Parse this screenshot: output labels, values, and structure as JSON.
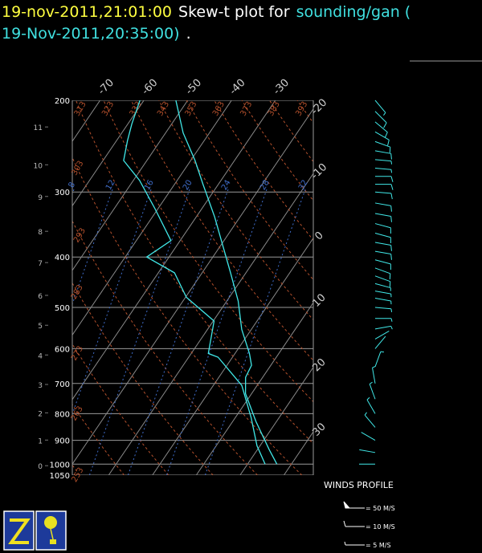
{
  "chart_data": {
    "type": "skewt",
    "title_lines": [
      [
        {
          "text": "19-nov-2011,21:01:00",
          "color": "#ffff40"
        },
        {
          "text": "Skew-t plot for",
          "color": "#ffffff"
        },
        {
          "text": "sounding/gan (",
          "color": "#40e0e0"
        }
      ],
      [
        {
          "text": "19-Nov-2011,20:35:00)",
          "color": "#40e0e0"
        },
        {
          "text": ".",
          "color": "#ffffff"
        }
      ]
    ],
    "ylim": [
      1050,
      200
    ],
    "xlim": [
      -20,
      35
    ],
    "pressure_ticks": [
      200,
      300,
      400,
      500,
      600,
      700,
      800,
      900,
      1000,
      1050
    ],
    "height_ticks": [
      11,
      10,
      9,
      8,
      7,
      6,
      5,
      4,
      3,
      2,
      1,
      0
    ],
    "height_pressures": [
      225,
      266,
      306,
      357,
      410,
      474,
      541,
      617,
      703,
      797,
      899,
      1007
    ],
    "temp_ticks": [
      -70,
      -60,
      -50,
      -40,
      -30,
      -20,
      -10,
      0,
      10,
      20,
      30
    ],
    "isotherm_color": "#8a8a8a",
    "dry_adiabats": [
      253,
      263,
      273,
      283,
      293,
      303,
      313,
      323,
      333,
      343,
      353,
      363,
      373,
      383,
      393
    ],
    "dry_adiabat_color": "#b4502c",
    "mixing_ratio_labels": [
      8,
      12,
      16,
      20,
      24,
      28,
      32
    ],
    "mixing_ratio_color": "#3f6cc8",
    "series": [
      {
        "color": "#40e8e8",
        "pressure": [
          1000,
          938,
          828,
          732,
          681,
          646,
          613,
          551,
          486,
          429,
          335,
          290,
          261,
          231,
          200
        ],
        "values": [
          26.7,
          22.7,
          15.3,
          8.6,
          6.1,
          5.6,
          3.3,
          -2.2,
          -7.4,
          -13.5,
          -25.8,
          -33.5,
          -39.0,
          -46.0,
          -52.7
        ]
      },
      {
        "color": "#40e8e8",
        "pressure": [
          1000,
          922,
          814,
          706,
          623,
          613,
          531,
          478,
          429,
          400,
          372,
          323,
          285,
          261,
          239,
          222,
          200
        ],
        "values": [
          24.0,
          19.3,
          13.6,
          6.5,
          -3.3,
          -6.1,
          -9.8,
          -19.8,
          -26.3,
          -35.1,
          -32.1,
          -40.7,
          -48.6,
          -55.3,
          -57.5,
          -59.1,
          -60.9
        ]
      }
    ],
    "winds": {
      "color": "#40e8e8",
      "pressure": [
        200,
        210,
        220,
        230,
        240,
        250,
        260,
        270,
        280,
        290,
        300,
        315,
        330,
        345,
        360,
        375,
        390,
        405,
        420,
        435,
        450,
        465,
        480,
        500,
        525,
        550,
        575,
        600,
        650,
        700,
        750,
        800,
        850,
        900,
        950,
        1000
      ],
      "speed": [
        8,
        10,
        12,
        12,
        10,
        10,
        8,
        8,
        10,
        10,
        12,
        12,
        12,
        10,
        10,
        10,
        12,
        12,
        10,
        10,
        8,
        8,
        8,
        6,
        5,
        5,
        4,
        4,
        5,
        6,
        6,
        5,
        5,
        4,
        3,
        3
      ],
      "direction": [
        140,
        135,
        130,
        120,
        110,
        100,
        95,
        95,
        90,
        90,
        95,
        100,
        100,
        105,
        105,
        100,
        100,
        105,
        110,
        110,
        105,
        100,
        100,
        95,
        90,
        80,
        60,
        40,
        20,
        350,
        340,
        330,
        320,
        300,
        280,
        270
      ]
    },
    "wind_legend_title": "WINDS PROFILE",
    "wind_legend": [
      {
        "speed": 50,
        "label": "= 50 M/S"
      },
      {
        "speed": 10,
        "label": "= 10 M/S"
      },
      {
        "speed": 5,
        "label": "= 5 M/S"
      }
    ]
  }
}
